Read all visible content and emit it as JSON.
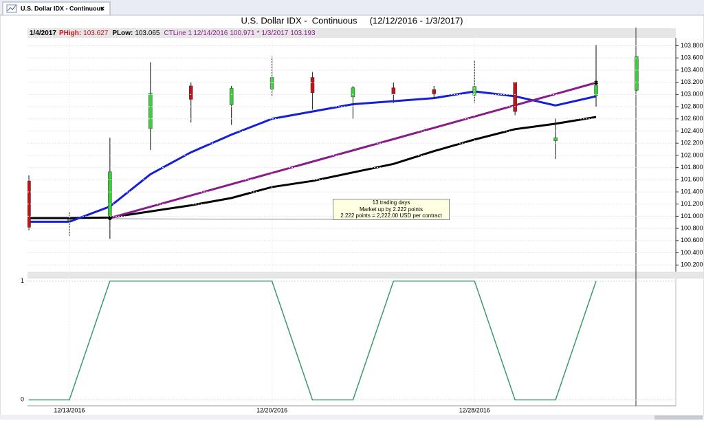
{
  "tab": {
    "title": "U.S. Dollar IDX - Continuous",
    "close": "×"
  },
  "header": {
    "date": "1/4/2017",
    "phigh_label": "PHigh:",
    "phigh": 103.627,
    "plow_label": "PLow:",
    "plow": 103.065,
    "ct_label": "CTLine 1",
    "ct_start_date": "12/14/2016",
    "ct_start": 100.971,
    "ct_sep": "*",
    "ct_end_date": "1/3/2017",
    "ct_end": 103.193
  },
  "annotation": {
    "lines": [
      "13 trading days",
      "Market up by 2.222 points",
      "2.222 points = 2,222.00 USD per contract"
    ]
  },
  "chart_data": [
    {
      "type": "candlestick",
      "title": "U.S. Dollar IDX -  Continuous     (12/12/2016 - 1/3/2017)",
      "open": [
        101.58,
        100.93,
        100.97,
        102.44,
        103.14,
        102.83,
        103.09,
        103.28,
        102.96,
        103.11,
        103.08,
        102.99,
        103.2,
        102.24,
        102.98,
        103.07
      ],
      "high": [
        101.67,
        101.08,
        102.29,
        103.53,
        103.2,
        103.14,
        103.62,
        103.37,
        103.14,
        103.2,
        103.14,
        103.56,
        103.2,
        102.61,
        103.81,
        103.62
      ],
      "low": [
        100.77,
        100.68,
        100.63,
        102.09,
        102.54,
        102.5,
        102.97,
        102.75,
        102.6,
        102.86,
        102.93,
        102.86,
        102.66,
        101.94,
        102.8,
        103.06
      ],
      "close": [
        100.82,
        100.95,
        101.73,
        103.02,
        102.92,
        103.1,
        103.28,
        103.03,
        103.11,
        103.01,
        103.01,
        103.13,
        102.72,
        102.29,
        103.15,
        103.62
      ],
      "up_color": "#3ccf3c",
      "down_color": "#c0141c",
      "series": [
        {
          "color": "#000000",
          "values": [
            100.97,
            100.97,
            100.98,
            101.08,
            101.18,
            101.3,
            101.48,
            101.58,
            101.72,
            101.86,
            102.07,
            102.26,
            102.43,
            102.52,
            102.63,
            null
          ]
        },
        {
          "color": "#1420d8",
          "values": [
            100.91,
            100.91,
            101.16,
            101.69,
            102.05,
            102.34,
            102.6,
            102.72,
            102.84,
            102.89,
            102.94,
            103.05,
            102.97,
            102.82,
            102.97,
            null
          ]
        },
        {
          "color": "#8b1a8b",
          "values": [
            null,
            null,
            100.971,
            101.156,
            101.341,
            101.527,
            101.712,
            101.897,
            102.082,
            102.267,
            102.452,
            102.638,
            102.823,
            103.008,
            103.193,
            null
          ]
        }
      ],
      "ylim": [
        100.09,
        103.93
      ],
      "yticks": [
        {
          "value": 100.2,
          "label": "100.200"
        },
        {
          "value": 100.4,
          "label": "100.400"
        },
        {
          "value": 100.6,
          "label": "100.600"
        },
        {
          "value": 100.8,
          "label": "100.800"
        },
        {
          "value": 101.0,
          "label": "101.000"
        },
        {
          "value": 101.2,
          "label": "101.200"
        },
        {
          "value": 101.4,
          "label": "101.400"
        },
        {
          "value": 101.6,
          "label": "101.600"
        },
        {
          "value": 101.8,
          "label": "101.800"
        },
        {
          "value": 102.0,
          "label": "102.000"
        },
        {
          "value": 102.2,
          "label": "102.200"
        },
        {
          "value": 102.4,
          "label": "102.400"
        },
        {
          "value": 102.6,
          "label": "102.600"
        },
        {
          "value": 102.8,
          "label": "102.800"
        },
        {
          "value": 103.0,
          "label": "103.000"
        },
        {
          "value": 103.2,
          "label": "103.200"
        },
        {
          "value": 103.4,
          "label": "103.400"
        },
        {
          "value": 103.6,
          "label": "103.600"
        },
        {
          "value": 103.8,
          "label": "103.800"
        }
      ],
      "grid": true
    },
    {
      "type": "line",
      "categories": [
        null,
        "12/13/2016",
        null,
        null,
        null,
        null,
        "12/20/2016",
        null,
        null,
        null,
        null,
        "12/28/2016",
        null,
        null,
        null,
        null
      ],
      "series": [
        {
          "color": "#3a9b6a",
          "values": [
            0,
            0,
            1,
            1,
            1,
            1,
            1,
            0,
            0,
            1,
            1,
            1,
            0,
            0,
            1,
            null
          ]
        }
      ],
      "ylim": [
        -0.05,
        1.05
      ],
      "yticks": [
        0,
        1
      ],
      "grid": true
    }
  ]
}
